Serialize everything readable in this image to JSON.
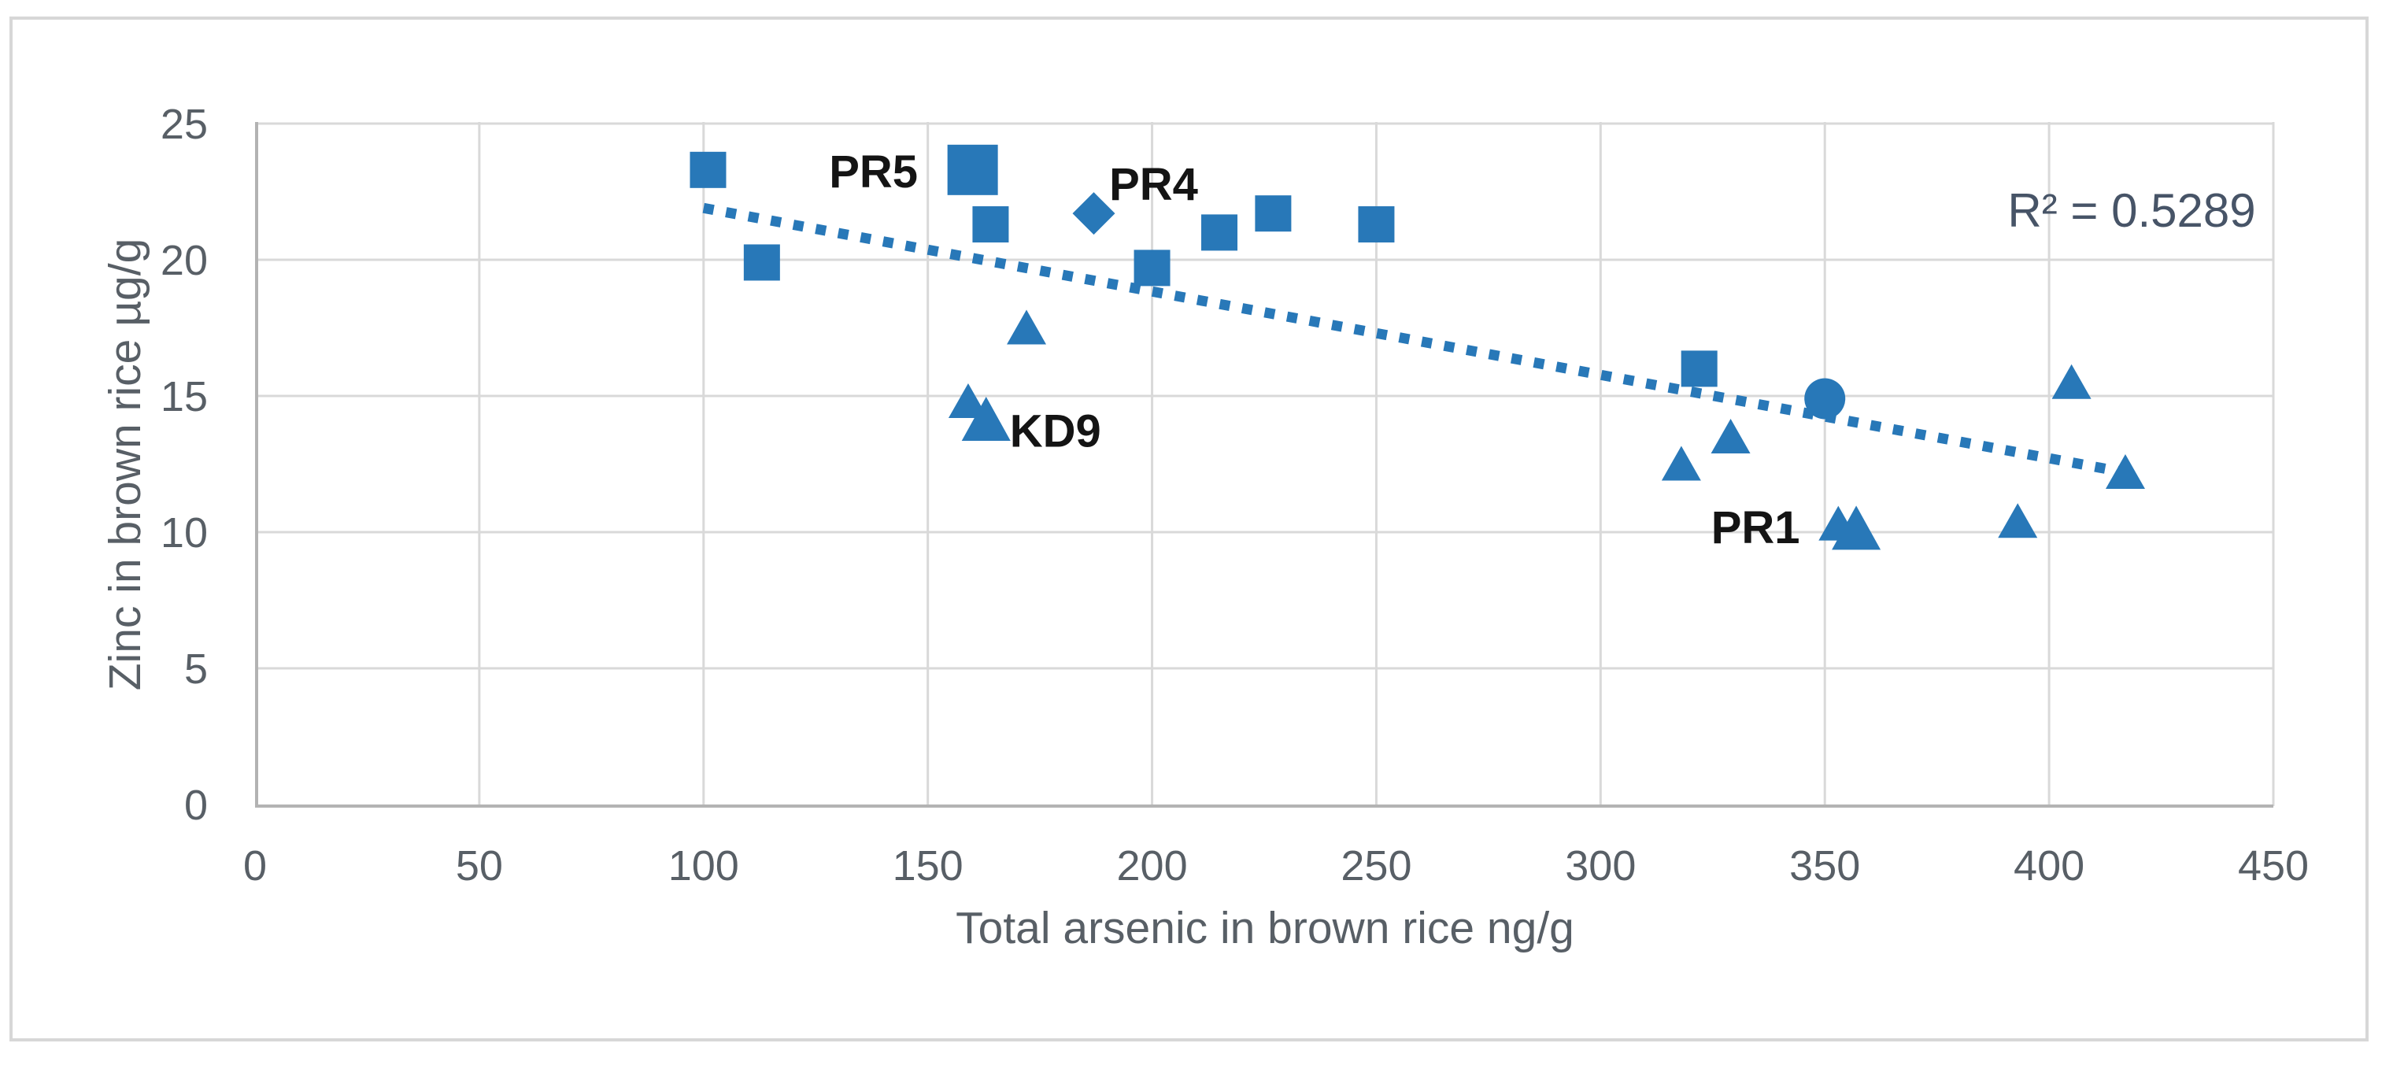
{
  "chart_data": {
    "type": "scatter",
    "title": "",
    "xlabel": "Total arsenic in brown rice ng/g",
    "ylabel": "Zinc in brown rice µg/g",
    "xlim": [
      0,
      450
    ],
    "ylim": [
      0,
      25
    ],
    "xticks": [
      0,
      50,
      100,
      150,
      200,
      250,
      300,
      350,
      400,
      450
    ],
    "yticks": [
      0,
      5,
      10,
      15,
      20,
      25
    ],
    "grid": true,
    "legend_position": "none",
    "annotations": {
      "r_squared_text": "R² = 0.5289",
      "r_squared_value": 0.5289
    },
    "series": [
      {
        "name": "brown rice samples (squares)",
        "marker": "square",
        "points": [
          {
            "x": 101,
            "y": 23.3
          },
          {
            "x": 113,
            "y": 19.9
          },
          {
            "x": 160,
            "y": 23.3,
            "big": true,
            "label": "PR5",
            "label_dx": -126,
            "label_dy": 2
          },
          {
            "x": 164,
            "y": 21.3
          },
          {
            "x": 200,
            "y": 19.7
          },
          {
            "x": 215,
            "y": 21.0
          },
          {
            "x": 227,
            "y": 21.7
          },
          {
            "x": 250,
            "y": 21.3
          },
          {
            "x": 322,
            "y": 16.0
          }
        ]
      },
      {
        "name": "labeled sample PR4 (diamond)",
        "marker": "diamond",
        "points": [
          {
            "x": 187,
            "y": 21.7,
            "label": "PR4",
            "label_dx": 76,
            "label_dy": -37
          }
        ]
      },
      {
        "name": "sample (circle)",
        "marker": "circle",
        "points": [
          {
            "x": 350,
            "y": 14.9
          }
        ]
      },
      {
        "name": "brown rice samples (triangles)",
        "marker": "triangle",
        "points": [
          {
            "x": 172,
            "y": 17.4
          },
          {
            "x": 159,
            "y": 14.7
          },
          {
            "x": 163,
            "y": 14.0,
            "big": true,
            "label": "KD9",
            "label_dx": 88,
            "label_dy": 10
          },
          {
            "x": 318,
            "y": 12.4
          },
          {
            "x": 329,
            "y": 13.4
          },
          {
            "x": 405,
            "y": 15.4
          },
          {
            "x": 417,
            "y": 12.1
          },
          {
            "x": 393,
            "y": 10.3
          },
          {
            "x": 353,
            "y": 10.2
          },
          {
            "x": 357,
            "y": 10.0,
            "big": true,
            "label": "PR1",
            "label_dx": -128,
            "label_dy": -6
          }
        ]
      }
    ],
    "trendline": {
      "style": "dotted",
      "x1": 100,
      "y1": 21.9,
      "x2": 420,
      "y2": 12.1
    }
  },
  "colors": {
    "marker_blue": "#2878b8",
    "trendline_blue": "#2878b8",
    "gridline": "#d9d9d9",
    "axis_line": "#b3b3b3",
    "figure_border": "#d7d7d7",
    "tick_text": "#585f66",
    "axis_title_text": "#585f66",
    "r_squared_text": "#475467",
    "point_label_text": "#141414",
    "background": "#ffffff"
  }
}
